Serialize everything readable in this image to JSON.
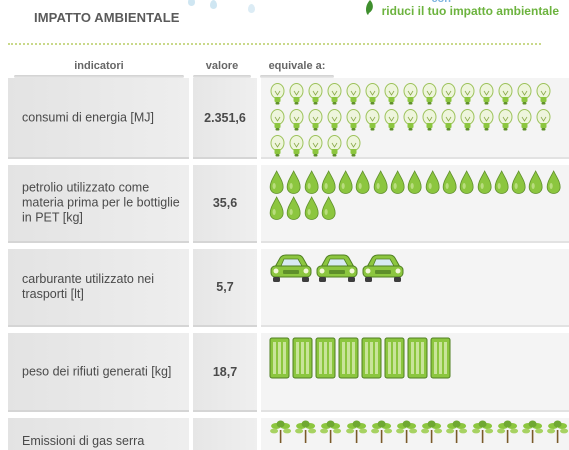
{
  "header": {
    "title": "IMPATTO AMBIENTALE",
    "faded_text": "con",
    "slogan": "riduci il tuo impatto ambientale"
  },
  "columns": {
    "indicators": "indicatori",
    "value": "valore",
    "equivalent": "equivale a:"
  },
  "rows": [
    {
      "label": "consumi di energia [MJ]",
      "value": "2.351,6",
      "icon": "lightbulb-icon",
      "count": 35
    },
    {
      "label": "petrolio utilizzato come materia prima per le bottiglie in PET [kg]",
      "value": "35,6",
      "icon": "oil-drop-icon",
      "count": 21
    },
    {
      "label": "carburante utilizzato nei trasporti [lt]",
      "value": "5,7",
      "icon": "car-icon",
      "count": 3
    },
    {
      "label": "peso dei rifiuti generati [kg]",
      "value": "18,7",
      "icon": "waste-bin-icon",
      "count": 8
    },
    {
      "label": "Emissioni di gas serra",
      "value": "",
      "icon": "tree-icon",
      "count": 12
    }
  ],
  "colors": {
    "accent_green": "#6cb33e",
    "icon_green": "#8cc63f",
    "title_gray": "#5a5a5a"
  }
}
